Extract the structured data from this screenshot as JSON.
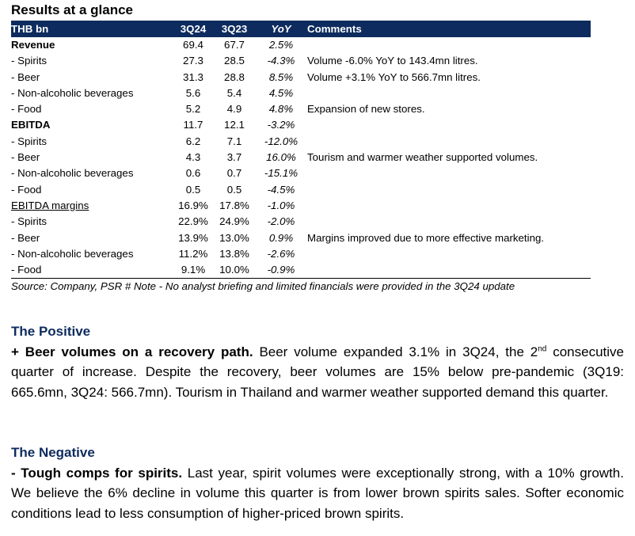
{
  "title": "Results at a glance",
  "table": {
    "headers": [
      "THB bn",
      "3Q24",
      "3Q23",
      "YoY",
      "Comments"
    ],
    "rows": [
      {
        "label": "Revenue",
        "q24": "69.4",
        "q23": "67.7",
        "yoy": "2.5%",
        "comment": "",
        "bold": true,
        "underline": false
      },
      {
        "label": " - Spirits",
        "q24": "27.3",
        "q23": "28.5",
        "yoy": "-4.3%",
        "comment": "Volume -6.0% YoY to 143.4mn litres.",
        "bold": false,
        "underline": false
      },
      {
        "label": " - Beer",
        "q24": "31.3",
        "q23": "28.8",
        "yoy": "8.5%",
        "comment": "Volume +3.1% YoY to 566.7mn litres.",
        "bold": false,
        "underline": false
      },
      {
        "label": " - Non-alcoholic beverages",
        "q24": "5.6",
        "q23": "5.4",
        "yoy": "4.5%",
        "comment": "",
        "bold": false,
        "underline": false
      },
      {
        "label": " - Food",
        "q24": "5.2",
        "q23": "4.9",
        "yoy": "4.8%",
        "comment": "Expansion of new stores.",
        "bold": false,
        "underline": false
      },
      {
        "label": "EBITDA",
        "q24": "11.7",
        "q23": "12.1",
        "yoy": "-3.2%",
        "comment": "",
        "bold": true,
        "underline": false
      },
      {
        "label": " - Spirits",
        "q24": "6.2",
        "q23": "7.1",
        "yoy": "-12.0%",
        "comment": "",
        "bold": false,
        "underline": false
      },
      {
        "label": " - Beer",
        "q24": "4.3",
        "q23": "3.7",
        "yoy": "16.0%",
        "comment": "Tourism and warmer weather supported volumes.",
        "bold": false,
        "underline": false
      },
      {
        "label": " - Non-alcoholic beverages",
        "q24": "0.6",
        "q23": "0.7",
        "yoy": "-15.1%",
        "comment": "",
        "bold": false,
        "underline": false
      },
      {
        "label": " - Food",
        "q24": "0.5",
        "q23": "0.5",
        "yoy": "-4.5%",
        "comment": "",
        "bold": false,
        "underline": false
      },
      {
        "label": "EBITDA margins",
        "q24": "16.9%",
        "q23": "17.8%",
        "yoy": "-1.0%",
        "comment": "",
        "bold": false,
        "underline": true
      },
      {
        "label": " - Spirits",
        "q24": "22.9%",
        "q23": "24.9%",
        "yoy": "-2.0%",
        "comment": "",
        "bold": false,
        "underline": false
      },
      {
        "label": " - Beer",
        "q24": "13.9%",
        "q23": "13.0%",
        "yoy": "0.9%",
        "comment": "Margins improved due to more effective marketing.",
        "bold": false,
        "underline": false
      },
      {
        "label": " - Non-alcoholic beverages",
        "q24": "11.2%",
        "q23": "13.8%",
        "yoy": "-2.6%",
        "comment": "",
        "bold": false,
        "underline": false
      },
      {
        "label": " - Food",
        "q24": "9.1%",
        "q23": "10.0%",
        "yoy": "-0.9%",
        "comment": "",
        "bold": false,
        "underline": false
      }
    ]
  },
  "source": "Source: Company, PSR # Note - No analyst briefing and limited financials were provided in the 3Q24 update",
  "positive": {
    "heading": "The Positive",
    "lead": "+ Beer volumes on a recovery path.",
    "text_before_sup": " Beer volume expanded 3.1% in 3Q24, the 2",
    "sup": "nd",
    "text_after_sup": " consecutive quarter of increase. Despite the recovery, beer volumes are 15% below pre-pandemic (3Q19: 665.6mn, 3Q24: 566.7mn). Tourism in Thailand and warmer weather supported demand this quarter."
  },
  "negative": {
    "heading": "The Negative",
    "lead": "- Tough comps for spirits.",
    "text": " Last year, spirit volumes were exceptionally strong, with a 10% growth. We believe the 6% decline in volume this quarter is from lower brown spirits sales. Softer economic conditions lead to less consumption of higher-priced brown spirits."
  }
}
